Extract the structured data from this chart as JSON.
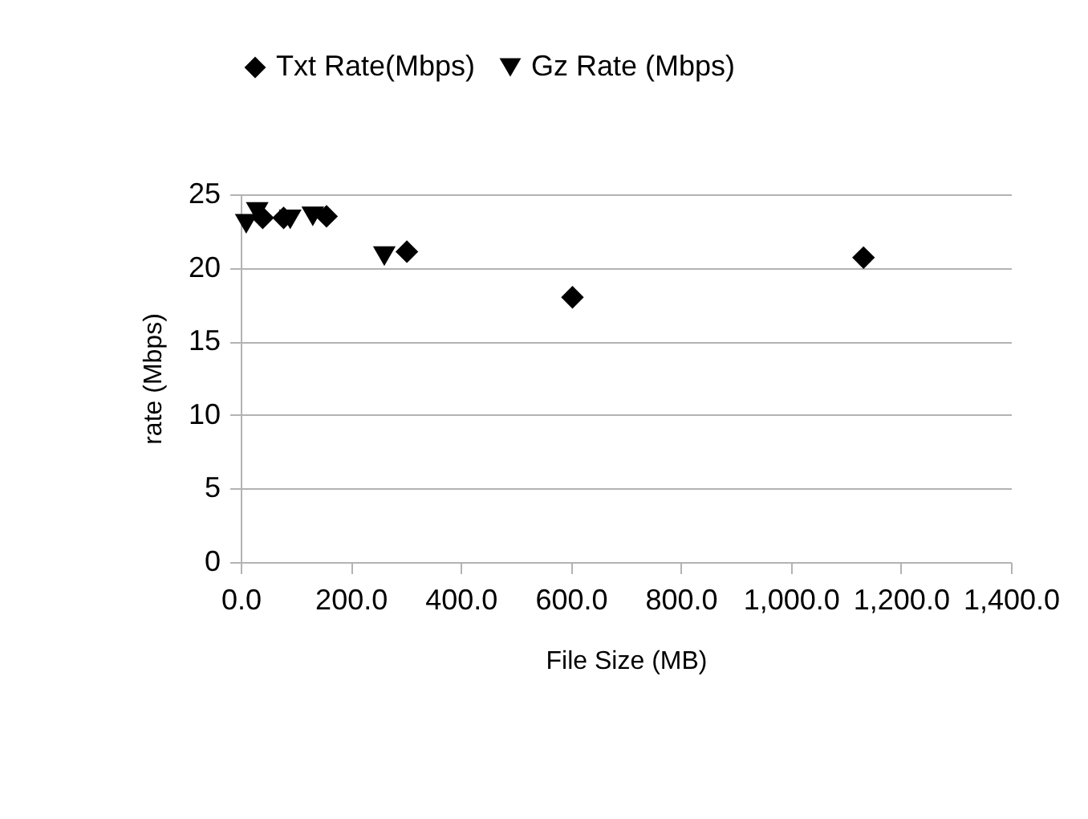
{
  "chart_data": {
    "type": "scatter",
    "xlabel": "File Size (MB)",
    "ylabel": "rate (Mbps)",
    "xlim": [
      0,
      1400
    ],
    "xticks": [
      {
        "value": 0,
        "label": "0.0"
      },
      {
        "value": 200,
        "label": "200.0"
      },
      {
        "value": 400,
        "label": "400.0"
      },
      {
        "value": 600,
        "label": "600.0"
      },
      {
        "value": 800,
        "label": "800.0"
      },
      {
        "value": 1000,
        "label": "1,000.0"
      },
      {
        "value": 1200,
        "label": "1,200.0"
      },
      {
        "value": 1400,
        "label": "1,400.0"
      }
    ],
    "ylim": [
      0,
      25
    ],
    "yticks": [
      0,
      5,
      10,
      15,
      20,
      25
    ],
    "grid": "y",
    "legend": "top",
    "series": [
      {
        "name": "Txt Rate(Mbps)",
        "color": "#000000",
        "marker": "diamond",
        "x": [
          40,
          78,
          156,
          302,
          603,
          1132
        ],
        "values": [
          23.4,
          23.4,
          23.5,
          21.1,
          18.0,
          20.7
        ]
      },
      {
        "name": "Gz Rate (Mbps)",
        "color": "#000000",
        "marker": "triangle",
        "x": [
          10,
          30,
          90,
          131,
          261
        ],
        "values": [
          23.0,
          23.8,
          23.3,
          23.5,
          20.8
        ]
      }
    ]
  }
}
